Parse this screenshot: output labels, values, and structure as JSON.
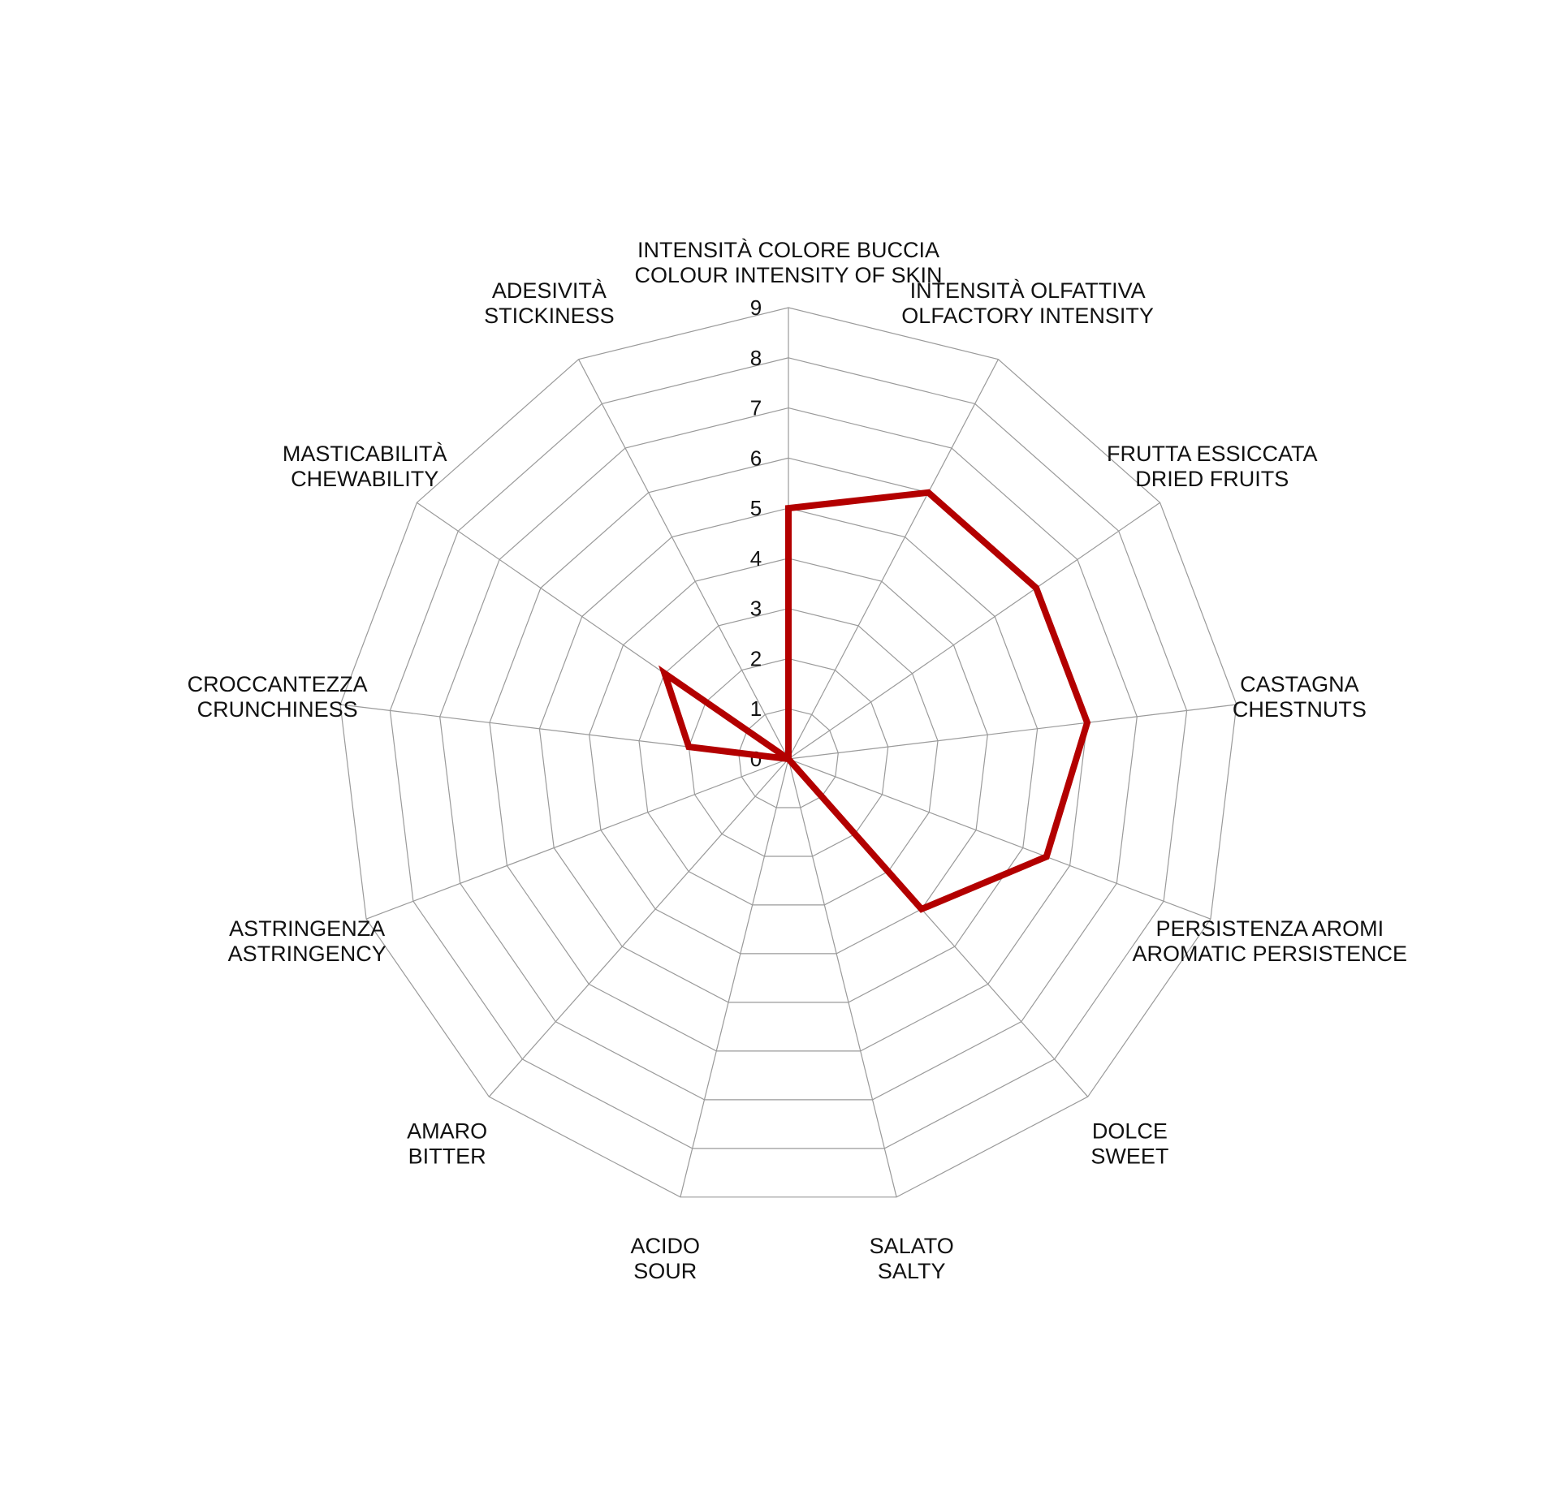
{
  "chart_data": {
    "type": "radar",
    "axes": [
      [
        "INTENSITÀ COLORE BUCCIA",
        "COLOUR INTENSITY OF SKIN"
      ],
      [
        "INTENSITÀ OLFATTIVA",
        "OLFACTORY INTENSITY"
      ],
      [
        "FRUTTA ESSICCATA",
        "DRIED FRUITS"
      ],
      [
        "CASTAGNA",
        "CHESTNUTS"
      ],
      [
        "PERSISTENZA AROMI",
        "AROMATIC PERSISTENCE"
      ],
      [
        "DOLCE",
        "SWEET"
      ],
      [
        "SALATO",
        "SALTY"
      ],
      [
        "ACIDO",
        "SOUR"
      ],
      [
        "AMARO",
        "BITTER"
      ],
      [
        "ASTRINGENZA",
        "ASTRINGENCY"
      ],
      [
        "CROCCANTEZZA",
        "CRUNCHINESS"
      ],
      [
        "MASTICABILITÀ",
        "CHEWABILITY"
      ],
      [
        "ADESIVITÀ",
        "STICKINESS"
      ]
    ],
    "tick_labels": [
      "0",
      "1",
      "2",
      "3",
      "4",
      "5",
      "6",
      "7",
      "8",
      "9"
    ],
    "range": [
      0,
      9
    ],
    "grid": true,
    "series": [
      {
        "values": [
          5,
          6,
          6,
          6,
          5.5,
          4,
          0,
          0,
          0,
          0,
          2,
          3,
          0
        ],
        "color": "#b30000"
      }
    ]
  }
}
